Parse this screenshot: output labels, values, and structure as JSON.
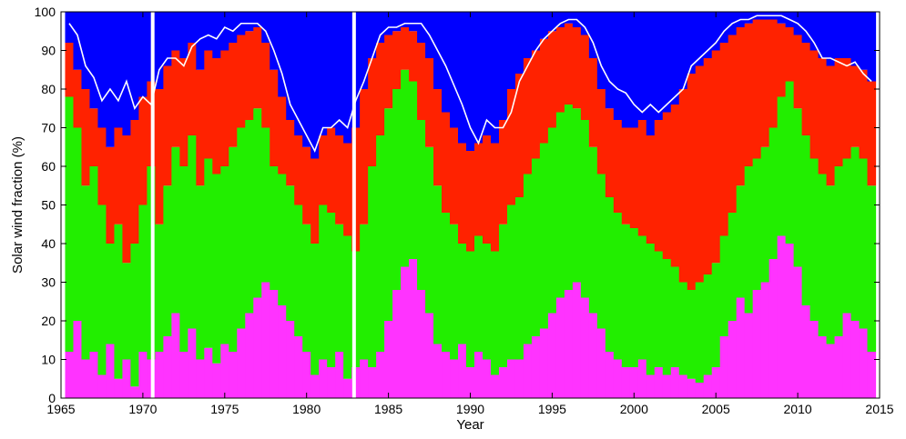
{
  "chart_data": {
    "type": "area",
    "xlabel": "Year",
    "ylabel": "Solar wind fraction (%)",
    "xlim": [
      1965,
      2015
    ],
    "ylim": [
      0,
      100
    ],
    "x_ticks": [
      "1965",
      "1970",
      "1975",
      "1980",
      "1985",
      "1990",
      "1995",
      "2000",
      "2005",
      "2010",
      "2015"
    ],
    "y_ticks": [
      "0",
      "10",
      "20",
      "30",
      "40",
      "50",
      "60",
      "70",
      "80",
      "90",
      "100"
    ],
    "data_gaps": [
      1970.6,
      1982.9
    ],
    "colors": {
      "stream_interaction": "#ff33ff",
      "slow": "#22ee00",
      "transient": "#ff2200",
      "fast": "#0000ff",
      "smooth_line": "#ffffff",
      "gap_line": "#ffffff"
    },
    "stack_bounds": {
      "x": [
        1965.5,
        1966.0,
        1966.5,
        1967.0,
        1967.5,
        1968.0,
        1968.5,
        1969.0,
        1969.5,
        1970.0,
        1970.5,
        1971.0,
        1971.5,
        1972.0,
        1972.5,
        1973.0,
        1973.5,
        1974.0,
        1974.5,
        1975.0,
        1975.5,
        1976.0,
        1976.5,
        1977.0,
        1977.5,
        1978.0,
        1978.5,
        1979.0,
        1979.5,
        1980.0,
        1980.5,
        1981.0,
        1981.5,
        1982.0,
        1982.5,
        1983.0,
        1983.5,
        1984.0,
        1984.5,
        1985.0,
        1985.5,
        1986.0,
        1986.5,
        1987.0,
        1987.5,
        1988.0,
        1988.5,
        1989.0,
        1989.5,
        1990.0,
        1990.5,
        1991.0,
        1991.5,
        1992.0,
        1992.5,
        1993.0,
        1993.5,
        1994.0,
        1994.5,
        1995.0,
        1995.5,
        1996.0,
        1996.5,
        1997.0,
        1997.5,
        1998.0,
        1998.5,
        1999.0,
        1999.5,
        2000.0,
        2000.5,
        2001.0,
        2001.5,
        2002.0,
        2002.5,
        2003.0,
        2003.5,
        2004.0,
        2004.5,
        2005.0,
        2005.5,
        2006.0,
        2006.5,
        2007.0,
        2007.5,
        2008.0,
        2008.5,
        2009.0,
        2009.5,
        2010.0,
        2010.5,
        2011.0,
        2011.5,
        2012.0,
        2012.5,
        2013.0,
        2013.5,
        2014.0,
        2014.5
      ],
      "stream_interaction": [
        12,
        20,
        10,
        12,
        6,
        14,
        5,
        10,
        3,
        12,
        10,
        12,
        16,
        22,
        12,
        18,
        10,
        13,
        9,
        14,
        12,
        18,
        22,
        26,
        30,
        28,
        24,
        20,
        16,
        12,
        6,
        10,
        8,
        12,
        5,
        8,
        10,
        8,
        12,
        20,
        28,
        34,
        36,
        28,
        22,
        14,
        12,
        10,
        14,
        8,
        12,
        10,
        6,
        8,
        10,
        10,
        14,
        16,
        18,
        22,
        26,
        28,
        30,
        26,
        22,
        18,
        12,
        10,
        8,
        8,
        10,
        6,
        8,
        6,
        8,
        6,
        5,
        4,
        6,
        8,
        16,
        20,
        26,
        22,
        28,
        30,
        36,
        42,
        40,
        34,
        24,
        20,
        16,
        14,
        16,
        22,
        20,
        18,
        12
      ],
      "slow": [
        78,
        70,
        55,
        60,
        50,
        40,
        45,
        35,
        40,
        50,
        60,
        45,
        55,
        65,
        60,
        68,
        55,
        62,
        58,
        60,
        65,
        70,
        72,
        75,
        70,
        60,
        58,
        55,
        50,
        45,
        40,
        50,
        48,
        45,
        42,
        38,
        45,
        60,
        68,
        75,
        80,
        85,
        82,
        72,
        65,
        55,
        48,
        45,
        40,
        38,
        42,
        40,
        38,
        45,
        50,
        52,
        58,
        62,
        66,
        70,
        74,
        76,
        75,
        72,
        65,
        58,
        52,
        48,
        45,
        44,
        42,
        40,
        38,
        36,
        34,
        30,
        28,
        30,
        32,
        35,
        42,
        48,
        55,
        60,
        62,
        65,
        70,
        78,
        82,
        75,
        68,
        62,
        58,
        55,
        60,
        62,
        65,
        62,
        55
      ],
      "transient": [
        92,
        85,
        80,
        75,
        70,
        65,
        70,
        68,
        72,
        78,
        82,
        80,
        86,
        90,
        88,
        92,
        85,
        90,
        88,
        90,
        92,
        94,
        95,
        96,
        92,
        85,
        78,
        72,
        68,
        65,
        62,
        68,
        70,
        68,
        66,
        70,
        80,
        88,
        92,
        94,
        95,
        96,
        95,
        92,
        88,
        80,
        74,
        70,
        66,
        64,
        66,
        68,
        66,
        72,
        80,
        84,
        88,
        90,
        93,
        95,
        96,
        97,
        96,
        94,
        88,
        80,
        75,
        72,
        70,
        70,
        72,
        68,
        72,
        74,
        76,
        80,
        84,
        86,
        88,
        90,
        92,
        94,
        96,
        97,
        98,
        98,
        98,
        97,
        96,
        94,
        92,
        90,
        88,
        86,
        88,
        88,
        86,
        85,
        82
      ]
    },
    "smooth_line": {
      "x": [
        1965.5,
        1966,
        1966.5,
        1967,
        1967.5,
        1968,
        1968.5,
        1969,
        1969.5,
        1970,
        1970.5,
        1971,
        1971.5,
        1972,
        1972.5,
        1973,
        1973.5,
        1974,
        1974.5,
        1975,
        1975.5,
        1976,
        1976.5,
        1977,
        1977.5,
        1978,
        1978.5,
        1979,
        1979.5,
        1980,
        1980.5,
        1981,
        1981.5,
        1982,
        1982.5,
        1983,
        1983.5,
        1984,
        1984.5,
        1985,
        1985.5,
        1986,
        1986.5,
        1987,
        1987.5,
        1988,
        1988.5,
        1989,
        1989.5,
        1990,
        1990.5,
        1991,
        1991.5,
        1992,
        1992.5,
        1993,
        1993.5,
        1994,
        1994.5,
        1995,
        1995.5,
        1996,
        1996.5,
        1997,
        1997.5,
        1998,
        1998.5,
        1999,
        1999.5,
        2000,
        2000.5,
        2001,
        2001.5,
        2002,
        2002.5,
        2003,
        2003.5,
        2004,
        2004.5,
        2005,
        2005.5,
        2006,
        2006.5,
        2007,
        2007.5,
        2008,
        2008.5,
        2009,
        2009.5,
        2010,
        2010.5,
        2011,
        2011.5,
        2012,
        2012.5,
        2013,
        2013.5,
        2014,
        2014.5
      ],
      "y": [
        97,
        94,
        86,
        83,
        77,
        80,
        77,
        82,
        75,
        78,
        76,
        85,
        88,
        88,
        86,
        91,
        93,
        94,
        93,
        96,
        95,
        97,
        97,
        97,
        95,
        90,
        84,
        76,
        72,
        68,
        64,
        70,
        70,
        72,
        70,
        77,
        82,
        88,
        94,
        96,
        96,
        97,
        97,
        97,
        94,
        90,
        86,
        81,
        76,
        70,
        66,
        72,
        70,
        70,
        74,
        82,
        86,
        90,
        93,
        95,
        97,
        98,
        98,
        96,
        92,
        86,
        82,
        80,
        79,
        76,
        74,
        76,
        74,
        76,
        78,
        80,
        86,
        88,
        90,
        92,
        95,
        97,
        98,
        98,
        99,
        99,
        99,
        99,
        98,
        97,
        95,
        92,
        88,
        88,
        87,
        86,
        87,
        84,
        82
      ]
    }
  }
}
